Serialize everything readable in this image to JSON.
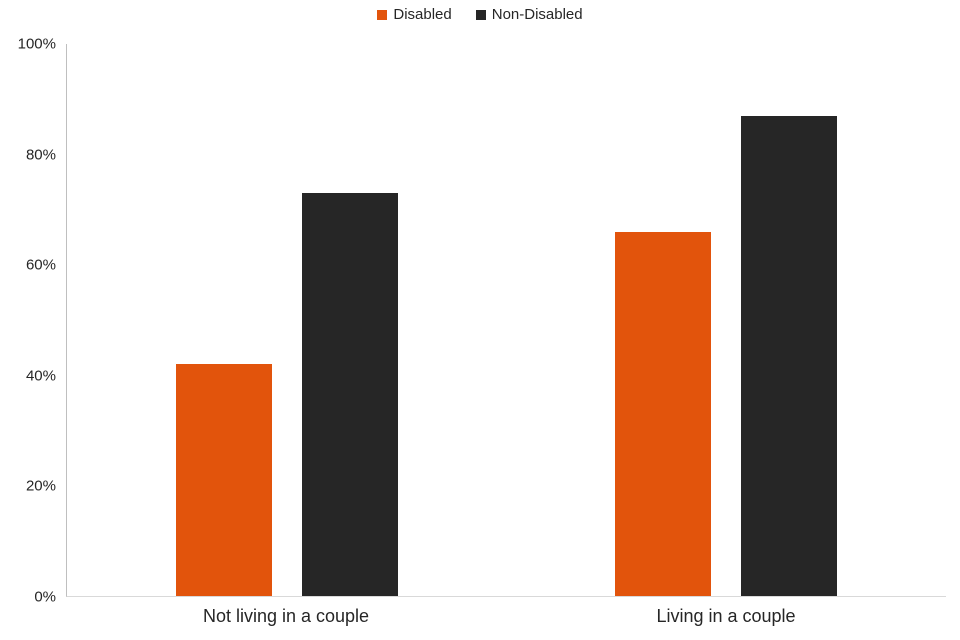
{
  "chart_data": {
    "type": "bar",
    "categories": [
      "Not living in a couple",
      "Living in a couple"
    ],
    "series": [
      {
        "name": "Disabled",
        "color": "#E2540C",
        "values": [
          42,
          66
        ]
      },
      {
        "name": "Non-Disabled",
        "color": "#262626",
        "values": [
          73,
          87
        ]
      }
    ],
    "title": "",
    "xlabel": "",
    "ylabel": "",
    "ylim": [
      0,
      100
    ],
    "yticks": [
      0,
      20,
      40,
      60,
      80,
      100
    ],
    "ytick_suffix": "%",
    "grid": false,
    "legend_position": "top-center",
    "background_color": "#ffffff",
    "axis_line_color": "#bfbfbf"
  }
}
